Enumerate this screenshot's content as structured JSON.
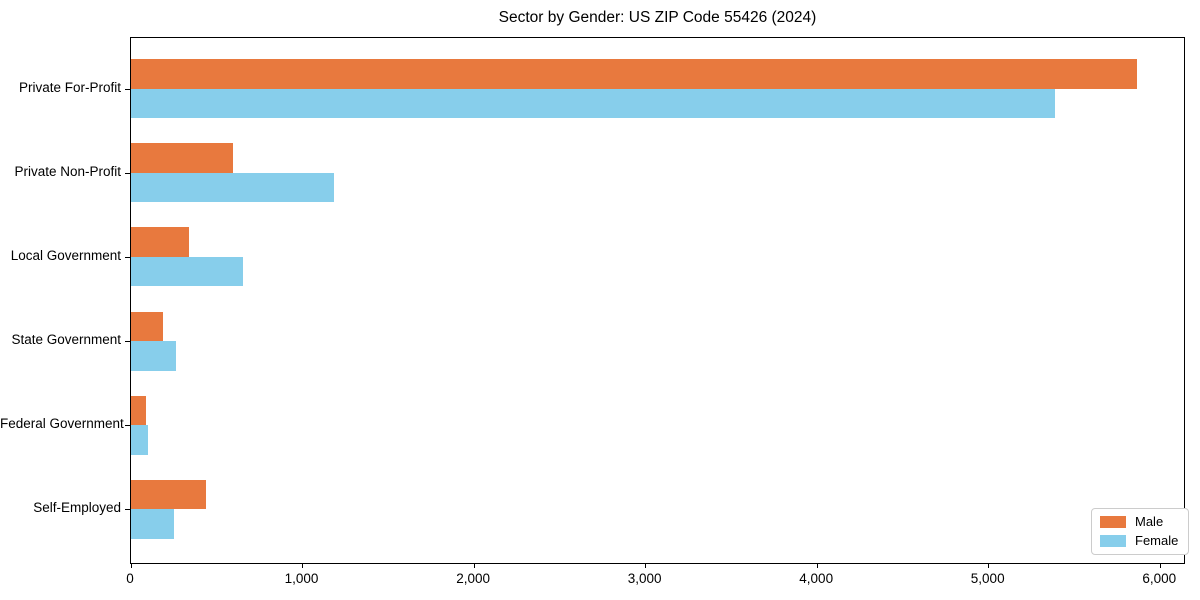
{
  "chart_data": {
    "type": "bar",
    "orientation": "horizontal",
    "title": "Sector by Gender: US ZIP Code 55426 (2024)",
    "categories": [
      "Private For-Profit",
      "Private Non-Profit",
      "Local Government",
      "State Government",
      "Federal Government",
      "Self-Employed"
    ],
    "series": [
      {
        "name": "Male",
        "color": "#e8793e",
        "values": [
          5866,
          593,
          340,
          188,
          87,
          437
        ]
      },
      {
        "name": "Female",
        "color": "#87ceeb",
        "values": [
          5388,
          1185,
          655,
          262,
          101,
          253
        ]
      }
    ],
    "xlabel": "",
    "ylabel": "",
    "xlim": [
      0,
      6150
    ],
    "xticks": {
      "values": [
        0,
        1000,
        2000,
        3000,
        4000,
        5000,
        6000
      ],
      "labels": [
        "0",
        "1,000",
        "2,000",
        "3,000",
        "4,000",
        "5,000",
        "6,000"
      ]
    },
    "grid": false,
    "legend": {
      "position": "lower right"
    },
    "colors": {
      "axis": "#000000",
      "background": "#ffffff",
      "legend_border": "#cccccc"
    }
  }
}
